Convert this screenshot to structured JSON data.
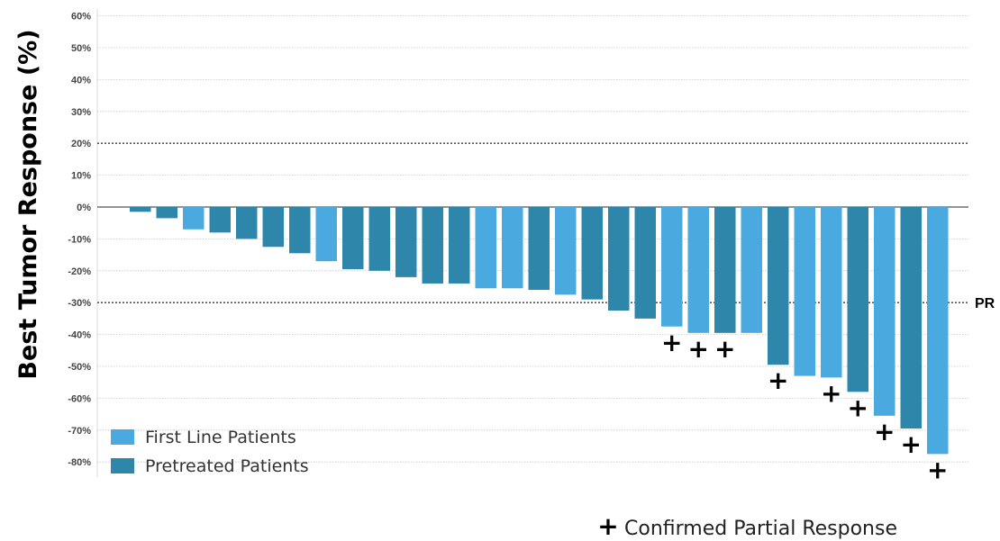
{
  "chart_data": {
    "type": "bar",
    "ylabel": "Best Tumor Response (%)",
    "ylim": [
      -85,
      63
    ],
    "yticks": [
      60,
      50,
      40,
      30,
      20,
      10,
      0,
      -10,
      -20,
      -30,
      -40,
      -50,
      -60,
      -70,
      -80
    ],
    "ytick_labels": [
      "60%",
      "50%",
      "40%",
      "30%",
      "20%",
      "10%",
      "0%",
      "-10%",
      "-20%",
      "-30%",
      "-40%",
      "-50%",
      "-60%",
      "-70%",
      "-80%"
    ],
    "grid": true,
    "reference_lines": [
      {
        "value": 20,
        "label": ""
      },
      {
        "value": -30,
        "label": "PR"
      }
    ],
    "series": [
      {
        "name": "First Line Patients",
        "color": "#4aaadf"
      },
      {
        "name": "Pretreated Patients",
        "color": "#2e87ab"
      }
    ],
    "bars": [
      {
        "value": -1.5,
        "series": 1,
        "confirmed": false
      },
      {
        "value": -3.5,
        "series": 1,
        "confirmed": false
      },
      {
        "value": -7,
        "series": 0,
        "confirmed": false
      },
      {
        "value": -8,
        "series": 1,
        "confirmed": false
      },
      {
        "value": -10,
        "series": 1,
        "confirmed": false
      },
      {
        "value": -12.5,
        "series": 1,
        "confirmed": false
      },
      {
        "value": -14.5,
        "series": 1,
        "confirmed": false
      },
      {
        "value": -17,
        "series": 0,
        "confirmed": false
      },
      {
        "value": -19.5,
        "series": 1,
        "confirmed": false
      },
      {
        "value": -20,
        "series": 1,
        "confirmed": false
      },
      {
        "value": -22,
        "series": 1,
        "confirmed": false
      },
      {
        "value": -24,
        "series": 1,
        "confirmed": false
      },
      {
        "value": -24,
        "series": 1,
        "confirmed": false
      },
      {
        "value": -25.5,
        "series": 0,
        "confirmed": false
      },
      {
        "value": -25.5,
        "series": 0,
        "confirmed": false
      },
      {
        "value": -26,
        "series": 1,
        "confirmed": false
      },
      {
        "value": -27.5,
        "series": 0,
        "confirmed": false
      },
      {
        "value": -29,
        "series": 1,
        "confirmed": false
      },
      {
        "value": -32.5,
        "series": 1,
        "confirmed": false
      },
      {
        "value": -35,
        "series": 1,
        "confirmed": false
      },
      {
        "value": -37.5,
        "series": 0,
        "confirmed": true
      },
      {
        "value": -39.5,
        "series": 0,
        "confirmed": true
      },
      {
        "value": -39.5,
        "series": 1,
        "confirmed": true
      },
      {
        "value": -39.5,
        "series": 0,
        "confirmed": false
      },
      {
        "value": -49.5,
        "series": 1,
        "confirmed": true
      },
      {
        "value": -53,
        "series": 0,
        "confirmed": false
      },
      {
        "value": -53.5,
        "series": 0,
        "confirmed": true
      },
      {
        "value": -58,
        "series": 1,
        "confirmed": true
      },
      {
        "value": -65.5,
        "series": 0,
        "confirmed": true
      },
      {
        "value": -69.5,
        "series": 1,
        "confirmed": true
      },
      {
        "value": -77.5,
        "series": 0,
        "confirmed": true
      }
    ],
    "marker_symbol": "+",
    "footnote": "Confirmed Partial Response",
    "legend_position": "bottom-left"
  }
}
